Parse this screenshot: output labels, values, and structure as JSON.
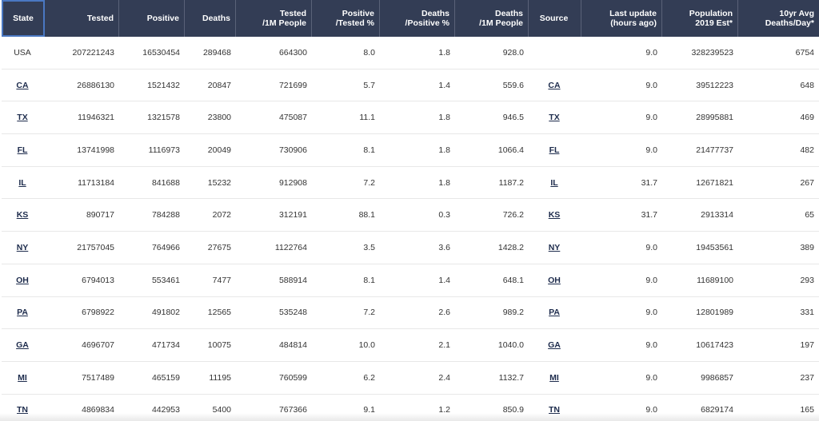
{
  "table": {
    "headers": [
      [
        "State"
      ],
      [
        "Tested"
      ],
      [
        "Positive"
      ],
      [
        "Deaths"
      ],
      [
        "Tested",
        "/1M People"
      ],
      [
        "Positive",
        "/Tested %"
      ],
      [
        "Deaths",
        "/Positive %"
      ],
      [
        "Deaths",
        "/1M People"
      ],
      [
        "Source"
      ],
      [
        "Last update",
        "(hours ago)"
      ],
      [
        "Population",
        "2019 Est*"
      ],
      [
        "10yr Avg",
        "Deaths/Day*"
      ]
    ],
    "rows": [
      {
        "state": "USA",
        "tested": "207221243",
        "positive": "16530454",
        "deaths": "289468",
        "tested_per_1m": "664300",
        "positive_pct": "8.0",
        "deaths_pct": "1.8",
        "deaths_per_1m": "928.0",
        "source": "",
        "last_update": "9.0",
        "population": "328239523",
        "avg_deaths": "6754"
      },
      {
        "state": "CA",
        "tested": "26886130",
        "positive": "1521432",
        "deaths": "20847",
        "tested_per_1m": "721699",
        "positive_pct": "5.7",
        "deaths_pct": "1.4",
        "deaths_per_1m": "559.6",
        "source": "CA",
        "last_update": "9.0",
        "population": "39512223",
        "avg_deaths": "648"
      },
      {
        "state": "TX",
        "tested": "11946321",
        "positive": "1321578",
        "deaths": "23800",
        "tested_per_1m": "475087",
        "positive_pct": "11.1",
        "deaths_pct": "1.8",
        "deaths_per_1m": "946.5",
        "source": "TX",
        "last_update": "9.0",
        "population": "28995881",
        "avg_deaths": "469"
      },
      {
        "state": "FL",
        "tested": "13741998",
        "positive": "1116973",
        "deaths": "20049",
        "tested_per_1m": "730906",
        "positive_pct": "8.1",
        "deaths_pct": "1.8",
        "deaths_per_1m": "1066.4",
        "source": "FL",
        "last_update": "9.0",
        "population": "21477737",
        "avg_deaths": "482"
      },
      {
        "state": "IL",
        "tested": "11713184",
        "positive": "841688",
        "deaths": "15232",
        "tested_per_1m": "912908",
        "positive_pct": "7.2",
        "deaths_pct": "1.8",
        "deaths_per_1m": "1187.2",
        "source": "IL",
        "last_update": "31.7",
        "population": "12671821",
        "avg_deaths": "267"
      },
      {
        "state": "KS",
        "tested": "890717",
        "positive": "784288",
        "deaths": "2072",
        "tested_per_1m": "312191",
        "positive_pct": "88.1",
        "deaths_pct": "0.3",
        "deaths_per_1m": "726.2",
        "source": "KS",
        "last_update": "31.7",
        "population": "2913314",
        "avg_deaths": "65"
      },
      {
        "state": "NY",
        "tested": "21757045",
        "positive": "764966",
        "deaths": "27675",
        "tested_per_1m": "1122764",
        "positive_pct": "3.5",
        "deaths_pct": "3.6",
        "deaths_per_1m": "1428.2",
        "source": "NY",
        "last_update": "9.0",
        "population": "19453561",
        "avg_deaths": "389"
      },
      {
        "state": "OH",
        "tested": "6794013",
        "positive": "553461",
        "deaths": "7477",
        "tested_per_1m": "588914",
        "positive_pct": "8.1",
        "deaths_pct": "1.4",
        "deaths_per_1m": "648.1",
        "source": "OH",
        "last_update": "9.0",
        "population": "11689100",
        "avg_deaths": "293"
      },
      {
        "state": "PA",
        "tested": "6798922",
        "positive": "491802",
        "deaths": "12565",
        "tested_per_1m": "535248",
        "positive_pct": "7.2",
        "deaths_pct": "2.6",
        "deaths_per_1m": "989.2",
        "source": "PA",
        "last_update": "9.0",
        "population": "12801989",
        "avg_deaths": "331"
      },
      {
        "state": "GA",
        "tested": "4696707",
        "positive": "471734",
        "deaths": "10075",
        "tested_per_1m": "484814",
        "positive_pct": "10.0",
        "deaths_pct": "2.1",
        "deaths_per_1m": "1040.0",
        "source": "GA",
        "last_update": "9.0",
        "population": "10617423",
        "avg_deaths": "197"
      },
      {
        "state": "MI",
        "tested": "7517489",
        "positive": "465159",
        "deaths": "11195",
        "tested_per_1m": "760599",
        "positive_pct": "6.2",
        "deaths_pct": "2.4",
        "deaths_per_1m": "1132.7",
        "source": "MI",
        "last_update": "9.0",
        "population": "9986857",
        "avg_deaths": "237"
      },
      {
        "state": "TN",
        "tested": "4869834",
        "positive": "442953",
        "deaths": "5400",
        "tested_per_1m": "767366",
        "positive_pct": "9.1",
        "deaths_pct": "1.2",
        "deaths_per_1m": "850.9",
        "source": "TN",
        "last_update": "9.0",
        "population": "6829174",
        "avg_deaths": "165"
      }
    ]
  },
  "colors": {
    "header_bg": "#333d55",
    "header_text": "#ffffff",
    "link": "#1d2b4c",
    "focus_border": "#4a78c2"
  }
}
